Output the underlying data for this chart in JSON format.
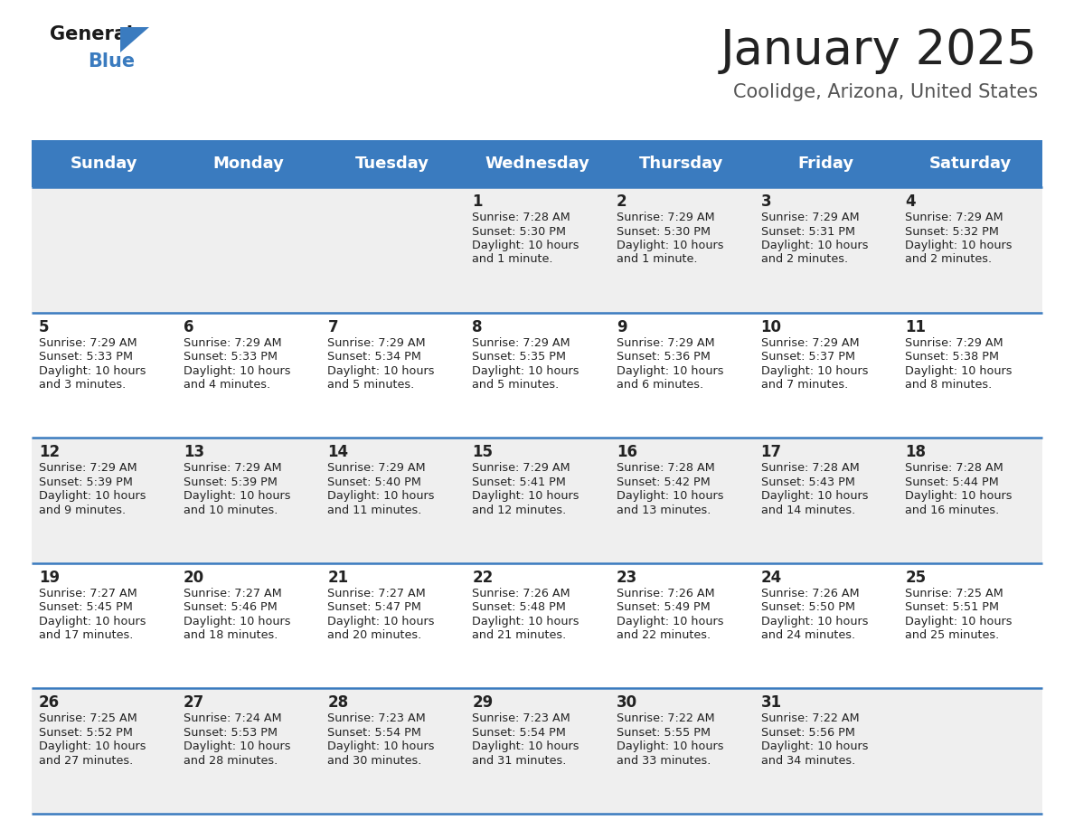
{
  "title": "January 2025",
  "subtitle": "Coolidge, Arizona, United States",
  "header_bg": "#3A7BBF",
  "header_text_color": "#FFFFFF",
  "day_names": [
    "Sunday",
    "Monday",
    "Tuesday",
    "Wednesday",
    "Thursday",
    "Friday",
    "Saturday"
  ],
  "cell_bg_odd": "#EFEFEF",
  "cell_bg_even": "#FFFFFF",
  "separator_color": "#3A7BBF",
  "day_num_color": "#222222",
  "info_color": "#222222",
  "days": [
    {
      "day": 1,
      "col": 3,
      "row": 0,
      "sunrise": "7:28 AM",
      "sunset": "5:30 PM",
      "daylight": "10 hours and 1 minute."
    },
    {
      "day": 2,
      "col": 4,
      "row": 0,
      "sunrise": "7:29 AM",
      "sunset": "5:30 PM",
      "daylight": "10 hours and 1 minute."
    },
    {
      "day": 3,
      "col": 5,
      "row": 0,
      "sunrise": "7:29 AM",
      "sunset": "5:31 PM",
      "daylight": "10 hours and 2 minutes."
    },
    {
      "day": 4,
      "col": 6,
      "row": 0,
      "sunrise": "7:29 AM",
      "sunset": "5:32 PM",
      "daylight": "10 hours and 2 minutes."
    },
    {
      "day": 5,
      "col": 0,
      "row": 1,
      "sunrise": "7:29 AM",
      "sunset": "5:33 PM",
      "daylight": "10 hours and 3 minutes."
    },
    {
      "day": 6,
      "col": 1,
      "row": 1,
      "sunrise": "7:29 AM",
      "sunset": "5:33 PM",
      "daylight": "10 hours and 4 minutes."
    },
    {
      "day": 7,
      "col": 2,
      "row": 1,
      "sunrise": "7:29 AM",
      "sunset": "5:34 PM",
      "daylight": "10 hours and 5 minutes."
    },
    {
      "day": 8,
      "col": 3,
      "row": 1,
      "sunrise": "7:29 AM",
      "sunset": "5:35 PM",
      "daylight": "10 hours and 5 minutes."
    },
    {
      "day": 9,
      "col": 4,
      "row": 1,
      "sunrise": "7:29 AM",
      "sunset": "5:36 PM",
      "daylight": "10 hours and 6 minutes."
    },
    {
      "day": 10,
      "col": 5,
      "row": 1,
      "sunrise": "7:29 AM",
      "sunset": "5:37 PM",
      "daylight": "10 hours and 7 minutes."
    },
    {
      "day": 11,
      "col": 6,
      "row": 1,
      "sunrise": "7:29 AM",
      "sunset": "5:38 PM",
      "daylight": "10 hours and 8 minutes."
    },
    {
      "day": 12,
      "col": 0,
      "row": 2,
      "sunrise": "7:29 AM",
      "sunset": "5:39 PM",
      "daylight": "10 hours and 9 minutes."
    },
    {
      "day": 13,
      "col": 1,
      "row": 2,
      "sunrise": "7:29 AM",
      "sunset": "5:39 PM",
      "daylight": "10 hours and 10 minutes."
    },
    {
      "day": 14,
      "col": 2,
      "row": 2,
      "sunrise": "7:29 AM",
      "sunset": "5:40 PM",
      "daylight": "10 hours and 11 minutes."
    },
    {
      "day": 15,
      "col": 3,
      "row": 2,
      "sunrise": "7:29 AM",
      "sunset": "5:41 PM",
      "daylight": "10 hours and 12 minutes."
    },
    {
      "day": 16,
      "col": 4,
      "row": 2,
      "sunrise": "7:28 AM",
      "sunset": "5:42 PM",
      "daylight": "10 hours and 13 minutes."
    },
    {
      "day": 17,
      "col": 5,
      "row": 2,
      "sunrise": "7:28 AM",
      "sunset": "5:43 PM",
      "daylight": "10 hours and 14 minutes."
    },
    {
      "day": 18,
      "col": 6,
      "row": 2,
      "sunrise": "7:28 AM",
      "sunset": "5:44 PM",
      "daylight": "10 hours and 16 minutes."
    },
    {
      "day": 19,
      "col": 0,
      "row": 3,
      "sunrise": "7:27 AM",
      "sunset": "5:45 PM",
      "daylight": "10 hours and 17 minutes."
    },
    {
      "day": 20,
      "col": 1,
      "row": 3,
      "sunrise": "7:27 AM",
      "sunset": "5:46 PM",
      "daylight": "10 hours and 18 minutes."
    },
    {
      "day": 21,
      "col": 2,
      "row": 3,
      "sunrise": "7:27 AM",
      "sunset": "5:47 PM",
      "daylight": "10 hours and 20 minutes."
    },
    {
      "day": 22,
      "col": 3,
      "row": 3,
      "sunrise": "7:26 AM",
      "sunset": "5:48 PM",
      "daylight": "10 hours and 21 minutes."
    },
    {
      "day": 23,
      "col": 4,
      "row": 3,
      "sunrise": "7:26 AM",
      "sunset": "5:49 PM",
      "daylight": "10 hours and 22 minutes."
    },
    {
      "day": 24,
      "col": 5,
      "row": 3,
      "sunrise": "7:26 AM",
      "sunset": "5:50 PM",
      "daylight": "10 hours and 24 minutes."
    },
    {
      "day": 25,
      "col": 6,
      "row": 3,
      "sunrise": "7:25 AM",
      "sunset": "5:51 PM",
      "daylight": "10 hours and 25 minutes."
    },
    {
      "day": 26,
      "col": 0,
      "row": 4,
      "sunrise": "7:25 AM",
      "sunset": "5:52 PM",
      "daylight": "10 hours and 27 minutes."
    },
    {
      "day": 27,
      "col": 1,
      "row": 4,
      "sunrise": "7:24 AM",
      "sunset": "5:53 PM",
      "daylight": "10 hours and 28 minutes."
    },
    {
      "day": 28,
      "col": 2,
      "row": 4,
      "sunrise": "7:23 AM",
      "sunset": "5:54 PM",
      "daylight": "10 hours and 30 minutes."
    },
    {
      "day": 29,
      "col": 3,
      "row": 4,
      "sunrise": "7:23 AM",
      "sunset": "5:54 PM",
      "daylight": "10 hours and 31 minutes."
    },
    {
      "day": 30,
      "col": 4,
      "row": 4,
      "sunrise": "7:22 AM",
      "sunset": "5:55 PM",
      "daylight": "10 hours and 33 minutes."
    },
    {
      "day": 31,
      "col": 5,
      "row": 4,
      "sunrise": "7:22 AM",
      "sunset": "5:56 PM",
      "daylight": "10 hours and 34 minutes."
    }
  ],
  "logo_color_general": "#1a1a1a",
  "logo_color_blue": "#3A7BBF",
  "title_fontsize": 38,
  "subtitle_fontsize": 15,
  "header_fontsize": 13,
  "day_num_fontsize": 12,
  "info_fontsize": 9.2,
  "logo_fontsize": 15
}
